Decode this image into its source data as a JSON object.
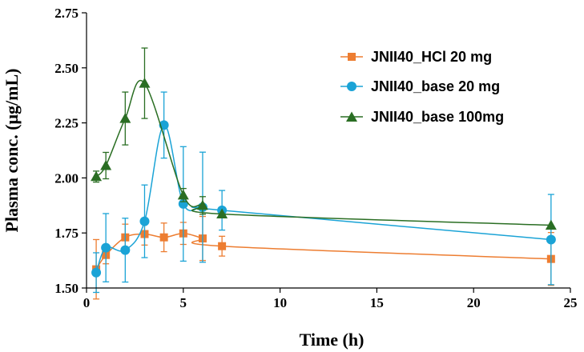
{
  "chart_data": {
    "type": "line",
    "title": "",
    "xlabel": "Time (h)",
    "ylabel": "Plasma conc. (μg/mL)",
    "xlim": [
      0,
      25
    ],
    "ylim": [
      1.5,
      2.75
    ],
    "xticks": [
      0,
      5,
      10,
      15,
      20,
      25
    ],
    "xtick_labels": [
      "0",
      "5",
      "10",
      "15",
      "20",
      "25"
    ],
    "yticks": [
      1.5,
      1.75,
      2.0,
      2.25,
      2.5,
      2.75
    ],
    "ytick_labels": [
      "1.50",
      "1.75",
      "2.00",
      "2.25",
      "2.50",
      "2.75"
    ],
    "grid": false,
    "legend_position": "top-right",
    "series": [
      {
        "name": "JNII40_HCl 20 mg",
        "color": "#ED7D31",
        "marker": "square",
        "x": [
          0.5,
          1,
          2,
          3,
          4,
          5,
          6,
          7,
          24
        ],
        "y": [
          1.585,
          1.65,
          1.73,
          1.745,
          1.73,
          1.748,
          1.725,
          1.69,
          1.632
        ],
        "err": [
          0.135,
          0.04,
          0.06,
          0.05,
          0.065,
          0.05,
          0.1,
          0.045,
          0.12
        ]
      },
      {
        "name": "JNII40_base 20 mg",
        "color": "#1AA3D6",
        "marker": "circle",
        "x": [
          0.5,
          1,
          2,
          3,
          4,
          5,
          6,
          7,
          24
        ],
        "y": [
          1.57,
          1.683,
          1.672,
          1.803,
          2.24,
          1.882,
          1.867,
          1.853,
          1.72
        ],
        "err": [
          0.09,
          0.155,
          0.145,
          0.165,
          0.15,
          0.26,
          0.25,
          0.09,
          0.205
        ]
      },
      {
        "name": "JNII40_base 100mg",
        "color": "#2A6E23",
        "marker": "triangle",
        "x": [
          0.5,
          1,
          2,
          3,
          5,
          6,
          7,
          24
        ],
        "y": [
          2.006,
          2.056,
          2.27,
          2.43,
          1.922,
          1.875,
          1.836,
          1.785
        ],
        "err": [
          0.025,
          0.06,
          0.12,
          0.16,
          0.03,
          0.04,
          0.0,
          0.0
        ]
      }
    ]
  }
}
